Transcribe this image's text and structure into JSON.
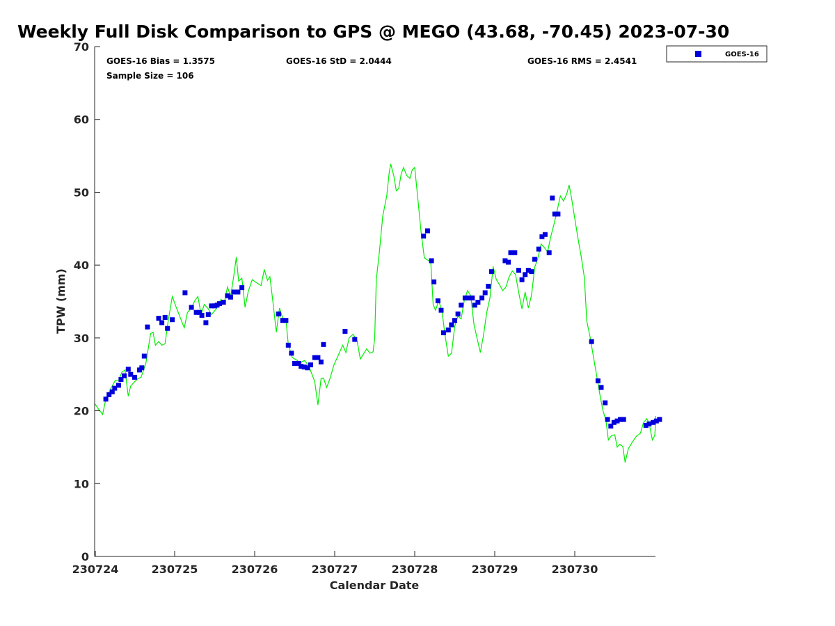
{
  "chart_data": {
    "type": "scatter",
    "title": "Weekly Full Disk Comparison to GPS @ MEGO (43.68, -70.45) 2023-07-30",
    "xlabel": "Calendar Date",
    "ylabel": "TPW (mm)",
    "xlim": [
      0,
      7
    ],
    "ylim": [
      0,
      70
    ],
    "y_ticks": [
      0,
      10,
      20,
      30,
      40,
      50,
      60,
      70
    ],
    "x_ticks": [
      {
        "value": 0,
        "label": "230724"
      },
      {
        "value": 1,
        "label": "230725"
      },
      {
        "value": 2,
        "label": "230726"
      },
      {
        "value": 3,
        "label": "230727"
      },
      {
        "value": 4,
        "label": "230728"
      },
      {
        "value": 5,
        "label": "230729"
      },
      {
        "value": 6,
        "label": "230730"
      }
    ],
    "grid": false,
    "legend": {
      "position": "top-right",
      "entries": [
        "GOES-16"
      ]
    },
    "stats": {
      "bias": "GOES-16 Bias = 1.3575",
      "std": "GOES-16 StD = 2.0444",
      "rms": "GOES-16 RMS = 2.4541",
      "sample": "Sample Size = 106"
    },
    "series": [
      {
        "name": "GOES-16",
        "kind": "markers",
        "color": "#0000dd",
        "points": [
          [
            0.14,
            21.6
          ],
          [
            0.18,
            22.2
          ],
          [
            0.22,
            22.6
          ],
          [
            0.25,
            23.1
          ],
          [
            0.3,
            23.5
          ],
          [
            0.33,
            24.3
          ],
          [
            0.37,
            24.8
          ],
          [
            0.42,
            25.7
          ],
          [
            0.45,
            25.0
          ],
          [
            0.5,
            24.6
          ],
          [
            0.56,
            25.6
          ],
          [
            0.59,
            25.9
          ],
          [
            0.62,
            27.5
          ],
          [
            0.66,
            31.5
          ],
          [
            0.8,
            32.7
          ],
          [
            0.84,
            32.1
          ],
          [
            0.88,
            32.8
          ],
          [
            0.91,
            31.3
          ],
          [
            0.97,
            32.5
          ],
          [
            1.13,
            36.2
          ],
          [
            1.21,
            34.2
          ],
          [
            1.27,
            33.5
          ],
          [
            1.31,
            33.5
          ],
          [
            1.34,
            33.1
          ],
          [
            1.39,
            32.1
          ],
          [
            1.42,
            33.2
          ],
          [
            1.46,
            34.4
          ],
          [
            1.5,
            34.4
          ],
          [
            1.53,
            34.5
          ],
          [
            1.56,
            34.7
          ],
          [
            1.61,
            34.9
          ],
          [
            1.66,
            35.8
          ],
          [
            1.7,
            35.6
          ],
          [
            1.74,
            36.3
          ],
          [
            1.79,
            36.3
          ],
          [
            1.84,
            36.9
          ],
          [
            2.3,
            33.3
          ],
          [
            2.35,
            32.4
          ],
          [
            2.39,
            32.4
          ],
          [
            2.42,
            29.0
          ],
          [
            2.46,
            27.9
          ],
          [
            2.5,
            26.5
          ],
          [
            2.55,
            26.5
          ],
          [
            2.58,
            26.1
          ],
          [
            2.62,
            26.0
          ],
          [
            2.66,
            25.9
          ],
          [
            2.7,
            26.3
          ],
          [
            2.75,
            27.3
          ],
          [
            2.79,
            27.3
          ],
          [
            2.83,
            26.7
          ],
          [
            2.86,
            29.1
          ],
          [
            3.13,
            30.9
          ],
          [
            3.25,
            29.8
          ],
          [
            4.11,
            44.0
          ],
          [
            4.16,
            44.7
          ],
          [
            4.21,
            40.6
          ],
          [
            4.24,
            37.7
          ],
          [
            4.29,
            35.1
          ],
          [
            4.33,
            33.8
          ],
          [
            4.36,
            30.7
          ],
          [
            4.42,
            31.1
          ],
          [
            4.46,
            31.8
          ],
          [
            4.5,
            32.4
          ],
          [
            4.54,
            33.3
          ],
          [
            4.58,
            34.5
          ],
          [
            4.63,
            35.5
          ],
          [
            4.67,
            35.5
          ],
          [
            4.72,
            35.5
          ],
          [
            4.75,
            34.5
          ],
          [
            4.79,
            34.9
          ],
          [
            4.84,
            35.5
          ],
          [
            4.88,
            36.2
          ],
          [
            4.92,
            37.1
          ],
          [
            4.96,
            39.1
          ],
          [
            5.13,
            40.6
          ],
          [
            5.17,
            40.4
          ],
          [
            5.2,
            41.7
          ],
          [
            5.25,
            41.7
          ],
          [
            5.3,
            39.3
          ],
          [
            5.34,
            38.0
          ],
          [
            5.38,
            38.7
          ],
          [
            5.42,
            39.3
          ],
          [
            5.46,
            39.1
          ],
          [
            5.5,
            40.8
          ],
          [
            5.55,
            42.2
          ],
          [
            5.59,
            43.9
          ],
          [
            5.63,
            44.2
          ],
          [
            5.68,
            41.7
          ],
          [
            5.72,
            49.2
          ],
          [
            5.75,
            47.0
          ],
          [
            5.79,
            47.0
          ],
          [
            6.21,
            29.5
          ],
          [
            6.29,
            24.1
          ],
          [
            6.33,
            23.2
          ],
          [
            6.38,
            21.1
          ],
          [
            6.41,
            18.8
          ],
          [
            6.45,
            17.9
          ],
          [
            6.49,
            18.4
          ],
          [
            6.53,
            18.6
          ],
          [
            6.57,
            18.8
          ],
          [
            6.61,
            18.8
          ],
          [
            6.89,
            18.0
          ],
          [
            6.93,
            18.2
          ],
          [
            6.98,
            18.4
          ],
          [
            7.02,
            18.6
          ],
          [
            7.06,
            18.8
          ]
        ]
      },
      {
        "name": "",
        "kind": "line",
        "color": "#00ee00",
        "points": [
          [
            -0.02,
            21.0
          ],
          [
            0.05,
            20.2
          ],
          [
            0.1,
            19.5
          ],
          [
            0.14,
            21.6
          ],
          [
            0.2,
            23.0
          ],
          [
            0.26,
            24.2
          ],
          [
            0.3,
            24.2
          ],
          [
            0.34,
            25.3
          ],
          [
            0.38,
            25.6
          ],
          [
            0.42,
            22.0
          ],
          [
            0.45,
            23.4
          ],
          [
            0.5,
            24.0
          ],
          [
            0.54,
            24.4
          ],
          [
            0.58,
            24.6
          ],
          [
            0.64,
            26.5
          ],
          [
            0.7,
            30.6
          ],
          [
            0.73,
            30.8
          ],
          [
            0.76,
            29.0
          ],
          [
            0.8,
            29.5
          ],
          [
            0.84,
            29.0
          ],
          [
            0.88,
            29.2
          ],
          [
            0.92,
            32.4
          ],
          [
            0.97,
            35.7
          ],
          [
            1.02,
            34.2
          ],
          [
            1.08,
            32.5
          ],
          [
            1.12,
            31.4
          ],
          [
            1.16,
            33.5
          ],
          [
            1.21,
            34.1
          ],
          [
            1.25,
            35.1
          ],
          [
            1.29,
            35.7
          ],
          [
            1.33,
            33.2
          ],
          [
            1.37,
            34.6
          ],
          [
            1.42,
            34.0
          ],
          [
            1.46,
            33.2
          ],
          [
            1.52,
            34.0
          ],
          [
            1.58,
            35.3
          ],
          [
            1.62,
            34.8
          ],
          [
            1.66,
            37.0
          ],
          [
            1.7,
            35.7
          ],
          [
            1.74,
            38.6
          ],
          [
            1.77,
            41.1
          ],
          [
            1.8,
            37.8
          ],
          [
            1.84,
            38.2
          ],
          [
            1.88,
            34.2
          ],
          [
            1.92,
            36.4
          ],
          [
            1.97,
            38.0
          ],
          [
            2.02,
            37.6
          ],
          [
            2.08,
            37.2
          ],
          [
            2.12,
            39.4
          ],
          [
            2.16,
            37.9
          ],
          [
            2.19,
            38.4
          ],
          [
            2.23,
            34.8
          ],
          [
            2.27,
            30.8
          ],
          [
            2.31,
            34.1
          ],
          [
            2.35,
            32.7
          ],
          [
            2.39,
            32.6
          ],
          [
            2.42,
            29.1
          ],
          [
            2.47,
            27.3
          ],
          [
            2.52,
            27.0
          ],
          [
            2.57,
            26.6
          ],
          [
            2.62,
            26.9
          ],
          [
            2.67,
            26.3
          ],
          [
            2.71,
            25.2
          ],
          [
            2.75,
            24.0
          ],
          [
            2.79,
            20.8
          ],
          [
            2.83,
            24.4
          ],
          [
            2.86,
            24.5
          ],
          [
            2.9,
            23.2
          ],
          [
            2.94,
            24.4
          ],
          [
            2.99,
            26.3
          ],
          [
            3.04,
            27.5
          ],
          [
            3.1,
            29.0
          ],
          [
            3.14,
            28.0
          ],
          [
            3.18,
            30.0
          ],
          [
            3.23,
            30.5
          ],
          [
            3.28,
            29.6
          ],
          [
            3.32,
            27.1
          ],
          [
            3.36,
            27.8
          ],
          [
            3.4,
            28.5
          ],
          [
            3.44,
            27.9
          ],
          [
            3.48,
            28.1
          ],
          [
            3.5,
            30.0
          ],
          [
            3.52,
            38.0
          ],
          [
            3.56,
            42.0
          ],
          [
            3.6,
            46.7
          ],
          [
            3.65,
            49.5
          ],
          [
            3.68,
            52.6
          ],
          [
            3.7,
            53.9
          ],
          [
            3.74,
            52.2
          ],
          [
            3.77,
            50.2
          ],
          [
            3.8,
            50.5
          ],
          [
            3.83,
            52.5
          ],
          [
            3.86,
            53.4
          ],
          [
            3.9,
            52.3
          ],
          [
            3.94,
            51.9
          ],
          [
            3.97,
            53.1
          ],
          [
            4.0,
            53.4
          ],
          [
            4.04,
            49.0
          ],
          [
            4.08,
            44.5
          ],
          [
            4.12,
            41.0
          ],
          [
            4.16,
            40.7
          ],
          [
            4.2,
            40.5
          ],
          [
            4.23,
            34.6
          ],
          [
            4.26,
            33.8
          ],
          [
            4.3,
            35.1
          ],
          [
            4.34,
            33.7
          ],
          [
            4.38,
            30.3
          ],
          [
            4.42,
            27.5
          ],
          [
            4.46,
            27.9
          ],
          [
            4.5,
            31.6
          ],
          [
            4.54,
            33.0
          ],
          [
            4.58,
            32.6
          ],
          [
            4.62,
            35.2
          ],
          [
            4.66,
            36.5
          ],
          [
            4.7,
            35.8
          ],
          [
            4.74,
            31.9
          ],
          [
            4.78,
            29.9
          ],
          [
            4.82,
            28.0
          ],
          [
            4.86,
            30.4
          ],
          [
            4.9,
            33.5
          ],
          [
            4.94,
            35.5
          ],
          [
            4.98,
            39.8
          ],
          [
            5.02,
            38.0
          ],
          [
            5.06,
            37.3
          ],
          [
            5.1,
            36.5
          ],
          [
            5.14,
            37.0
          ],
          [
            5.18,
            38.4
          ],
          [
            5.22,
            39.2
          ],
          [
            5.26,
            38.7
          ],
          [
            5.3,
            36.2
          ],
          [
            5.34,
            34.0
          ],
          [
            5.38,
            36.3
          ],
          [
            5.42,
            34.1
          ],
          [
            5.46,
            35.9
          ],
          [
            5.5,
            39.7
          ],
          [
            5.54,
            41.0
          ],
          [
            5.58,
            42.9
          ],
          [
            5.62,
            42.4
          ],
          [
            5.66,
            41.8
          ],
          [
            5.7,
            43.9
          ],
          [
            5.74,
            45.6
          ],
          [
            5.78,
            47.5
          ],
          [
            5.82,
            49.5
          ],
          [
            5.86,
            48.8
          ],
          [
            5.9,
            49.8
          ],
          [
            5.93,
            51.0
          ],
          [
            5.96,
            49.2
          ],
          [
            6.0,
            46.4
          ],
          [
            6.04,
            43.7
          ],
          [
            6.08,
            41.2
          ],
          [
            6.12,
            38.3
          ],
          [
            6.15,
            32.3
          ],
          [
            6.19,
            30.2
          ],
          [
            6.23,
            27.6
          ],
          [
            6.27,
            25.1
          ],
          [
            6.31,
            22.5
          ],
          [
            6.35,
            20.1
          ],
          [
            6.39,
            18.7
          ],
          [
            6.42,
            16.0
          ],
          [
            6.46,
            16.6
          ],
          [
            6.5,
            16.7
          ],
          [
            6.53,
            15.0
          ],
          [
            6.56,
            15.4
          ],
          [
            6.6,
            15.1
          ],
          [
            6.63,
            12.9
          ],
          [
            6.67,
            14.8
          ],
          [
            6.72,
            15.7
          ],
          [
            6.77,
            16.5
          ],
          [
            6.82,
            16.9
          ],
          [
            6.86,
            18.4
          ],
          [
            6.9,
            18.9
          ],
          [
            6.93,
            18.3
          ],
          [
            6.97,
            16.0
          ],
          [
            7.0,
            16.6
          ],
          [
            7.04,
            18.3
          ],
          [
            7.07,
            19.3
          ]
        ]
      }
    ]
  }
}
